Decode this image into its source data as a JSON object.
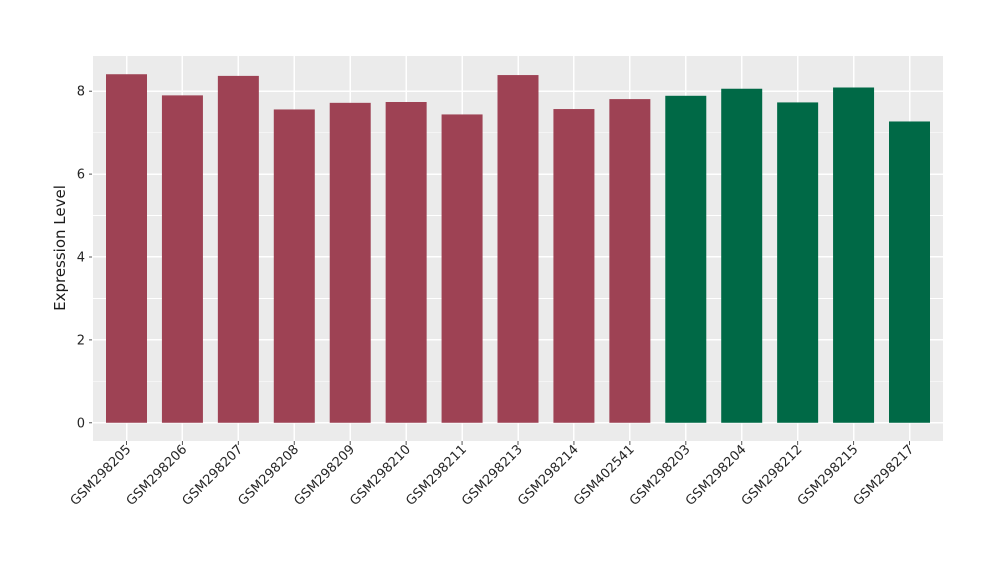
{
  "figure": {
    "background": "#ffffff",
    "panel_background": "#ebebeb",
    "grid_color": "#ffffff",
    "tick_color": "#555555",
    "text_color": "#262626"
  },
  "chart_data": {
    "type": "bar",
    "title": "",
    "xlabel": "",
    "ylabel": "Expression Level",
    "categories": [
      "GSM298205",
      "GSM298206",
      "GSM298207",
      "GSM298208",
      "GSM298209",
      "GSM298210",
      "GSM298211",
      "GSM298213",
      "GSM298214",
      "GSM402541",
      "GSM298203",
      "GSM298204",
      "GSM298212",
      "GSM298215",
      "GSM298217"
    ],
    "values": [
      8.41,
      7.9,
      8.37,
      7.56,
      7.72,
      7.74,
      7.44,
      8.39,
      7.57,
      7.81,
      7.89,
      8.06,
      7.73,
      8.09,
      7.27
    ],
    "bar_colors": [
      "#9e4254",
      "#9e4254",
      "#9e4254",
      "#9e4254",
      "#9e4254",
      "#9e4254",
      "#9e4254",
      "#9e4254",
      "#9e4254",
      "#9e4254",
      "#006946",
      "#006946",
      "#006946",
      "#006946",
      "#006946"
    ],
    "color_groups": [
      {
        "color": "#9e4254",
        "categories": [
          "GSM298205",
          "GSM298206",
          "GSM298207",
          "GSM298208",
          "GSM298209",
          "GSM298210",
          "GSM298211",
          "GSM298213",
          "GSM298214",
          "GSM402541"
        ]
      },
      {
        "color": "#006946",
        "categories": [
          "GSM298203",
          "GSM298204",
          "GSM298212",
          "GSM298215",
          "GSM298217"
        ]
      }
    ],
    "yticks": [
      0,
      2,
      4,
      6,
      8
    ],
    "minor_yticks": [
      1,
      3,
      5,
      7
    ],
    "ylim": [
      -0.44,
      8.85
    ],
    "grid": true,
    "legend": "none",
    "x_tick_rotation": 45
  }
}
